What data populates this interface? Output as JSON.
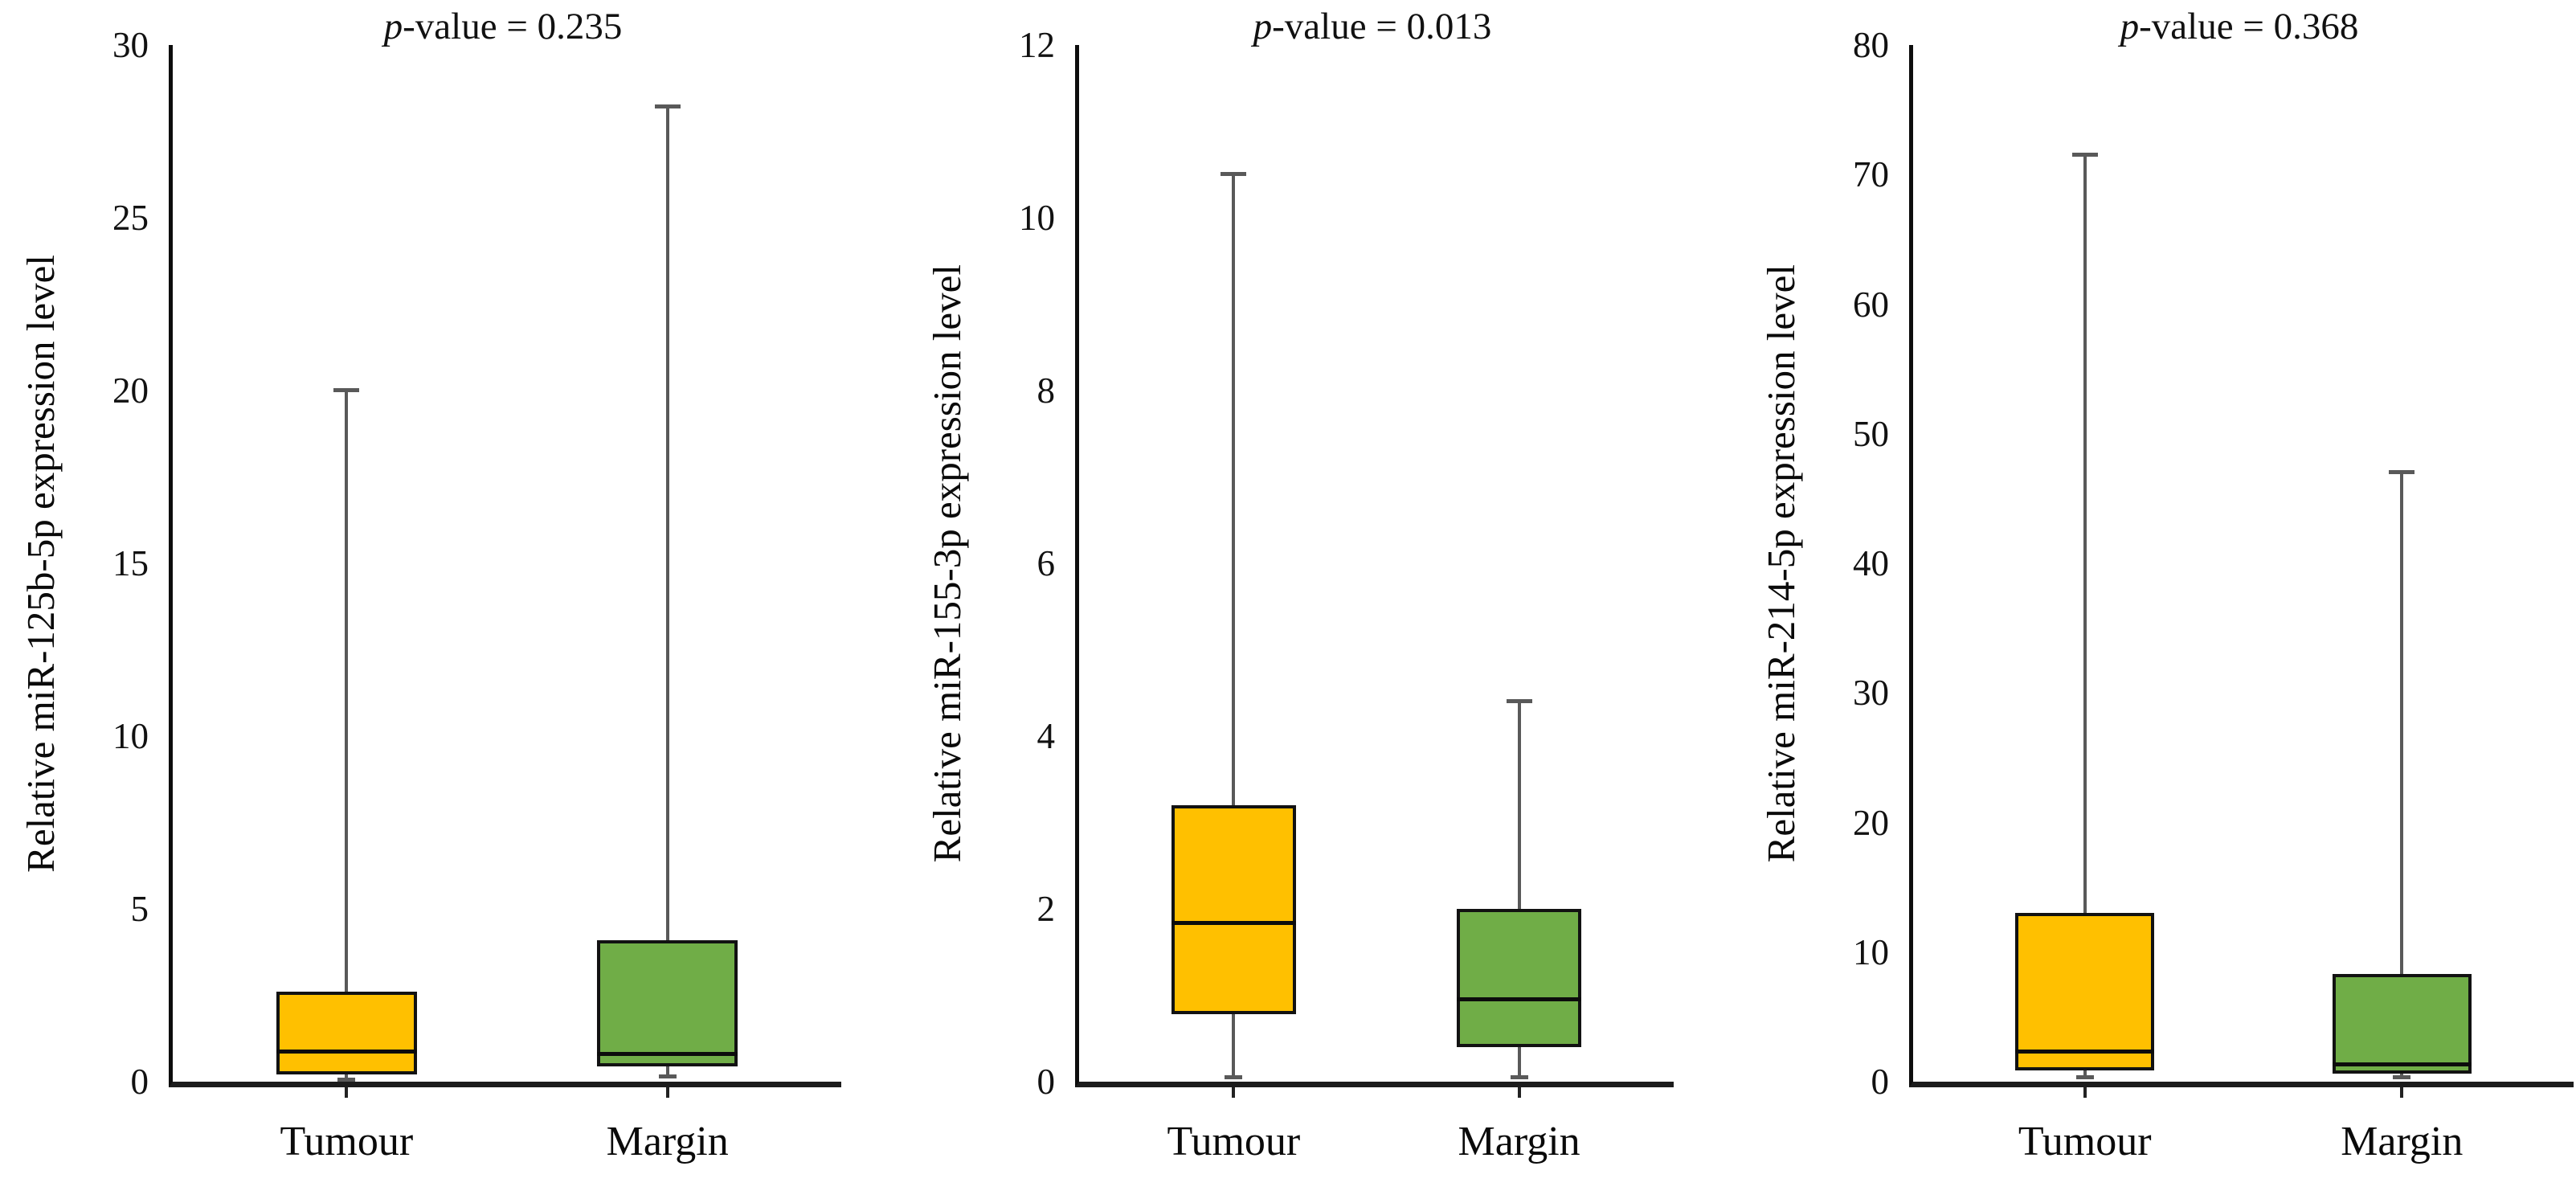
{
  "figure_background": "#ffffff",
  "colors": {
    "tumour_fill": "#FFC000",
    "margin_fill": "#70AD47",
    "box_border": "#121212",
    "median": "#0c0c0c",
    "whisker": "#595959",
    "axis": "#1c1c1c",
    "text": "#000000"
  },
  "chart_data": [
    {
      "type": "boxplot",
      "p_italic": "p",
      "p_rest": "-value = 0.235",
      "p_value": 0.235,
      "ylabel": "Relative miR-125b-5p expression level",
      "ylim": [
        0,
        30
      ],
      "yticks": [
        0,
        5,
        10,
        15,
        20,
        25,
        30
      ],
      "grid": false,
      "categories": [
        "Tumour",
        "Margin"
      ],
      "series": [
        {
          "name": "Tumour",
          "fill_key": "tumour_fill",
          "whisker_low": 0.05,
          "q1": 0.2,
          "median": 0.85,
          "q3": 2.6,
          "whisker_high": 20.0
        },
        {
          "name": "Margin",
          "fill_key": "margin_fill",
          "whisker_low": 0.15,
          "q1": 0.45,
          "median": 0.8,
          "q3": 4.1,
          "whisker_high": 28.2
        }
      ]
    },
    {
      "type": "boxplot",
      "p_italic": "p",
      "p_rest": "-value = 0.013",
      "p_value": 0.013,
      "ylabel": "Relative miR-155-3p expression level",
      "ylim": [
        0,
        12
      ],
      "yticks": [
        0,
        2,
        4,
        6,
        8,
        10,
        12
      ],
      "grid": false,
      "categories": [
        "Tumour",
        "Margin"
      ],
      "series": [
        {
          "name": "Tumour",
          "fill_key": "tumour_fill",
          "whisker_low": 0.05,
          "q1": 0.78,
          "median": 1.83,
          "q3": 3.2,
          "whisker_high": 10.5
        },
        {
          "name": "Margin",
          "fill_key": "margin_fill",
          "whisker_low": 0.05,
          "q1": 0.4,
          "median": 0.95,
          "q3": 2.0,
          "whisker_high": 4.4
        }
      ]
    },
    {
      "type": "boxplot",
      "p_italic": "p",
      "p_rest": "-value = 0.368",
      "p_value": 0.368,
      "ylabel": "Relative miR-214-5p expression level",
      "ylim": [
        0,
        80
      ],
      "yticks": [
        0,
        10,
        20,
        30,
        40,
        50,
        60,
        70,
        80
      ],
      "grid": false,
      "categories": [
        "Tumour",
        "Margin"
      ],
      "series": [
        {
          "name": "Tumour",
          "fill_key": "tumour_fill",
          "whisker_low": 0.3,
          "q1": 0.9,
          "median": 2.3,
          "q3": 13.0,
          "whisker_high": 71.5
        },
        {
          "name": "Margin",
          "fill_key": "margin_fill",
          "whisker_low": 0.3,
          "q1": 0.6,
          "median": 1.3,
          "q3": 8.3,
          "whisker_high": 47.0
        }
      ]
    }
  ]
}
